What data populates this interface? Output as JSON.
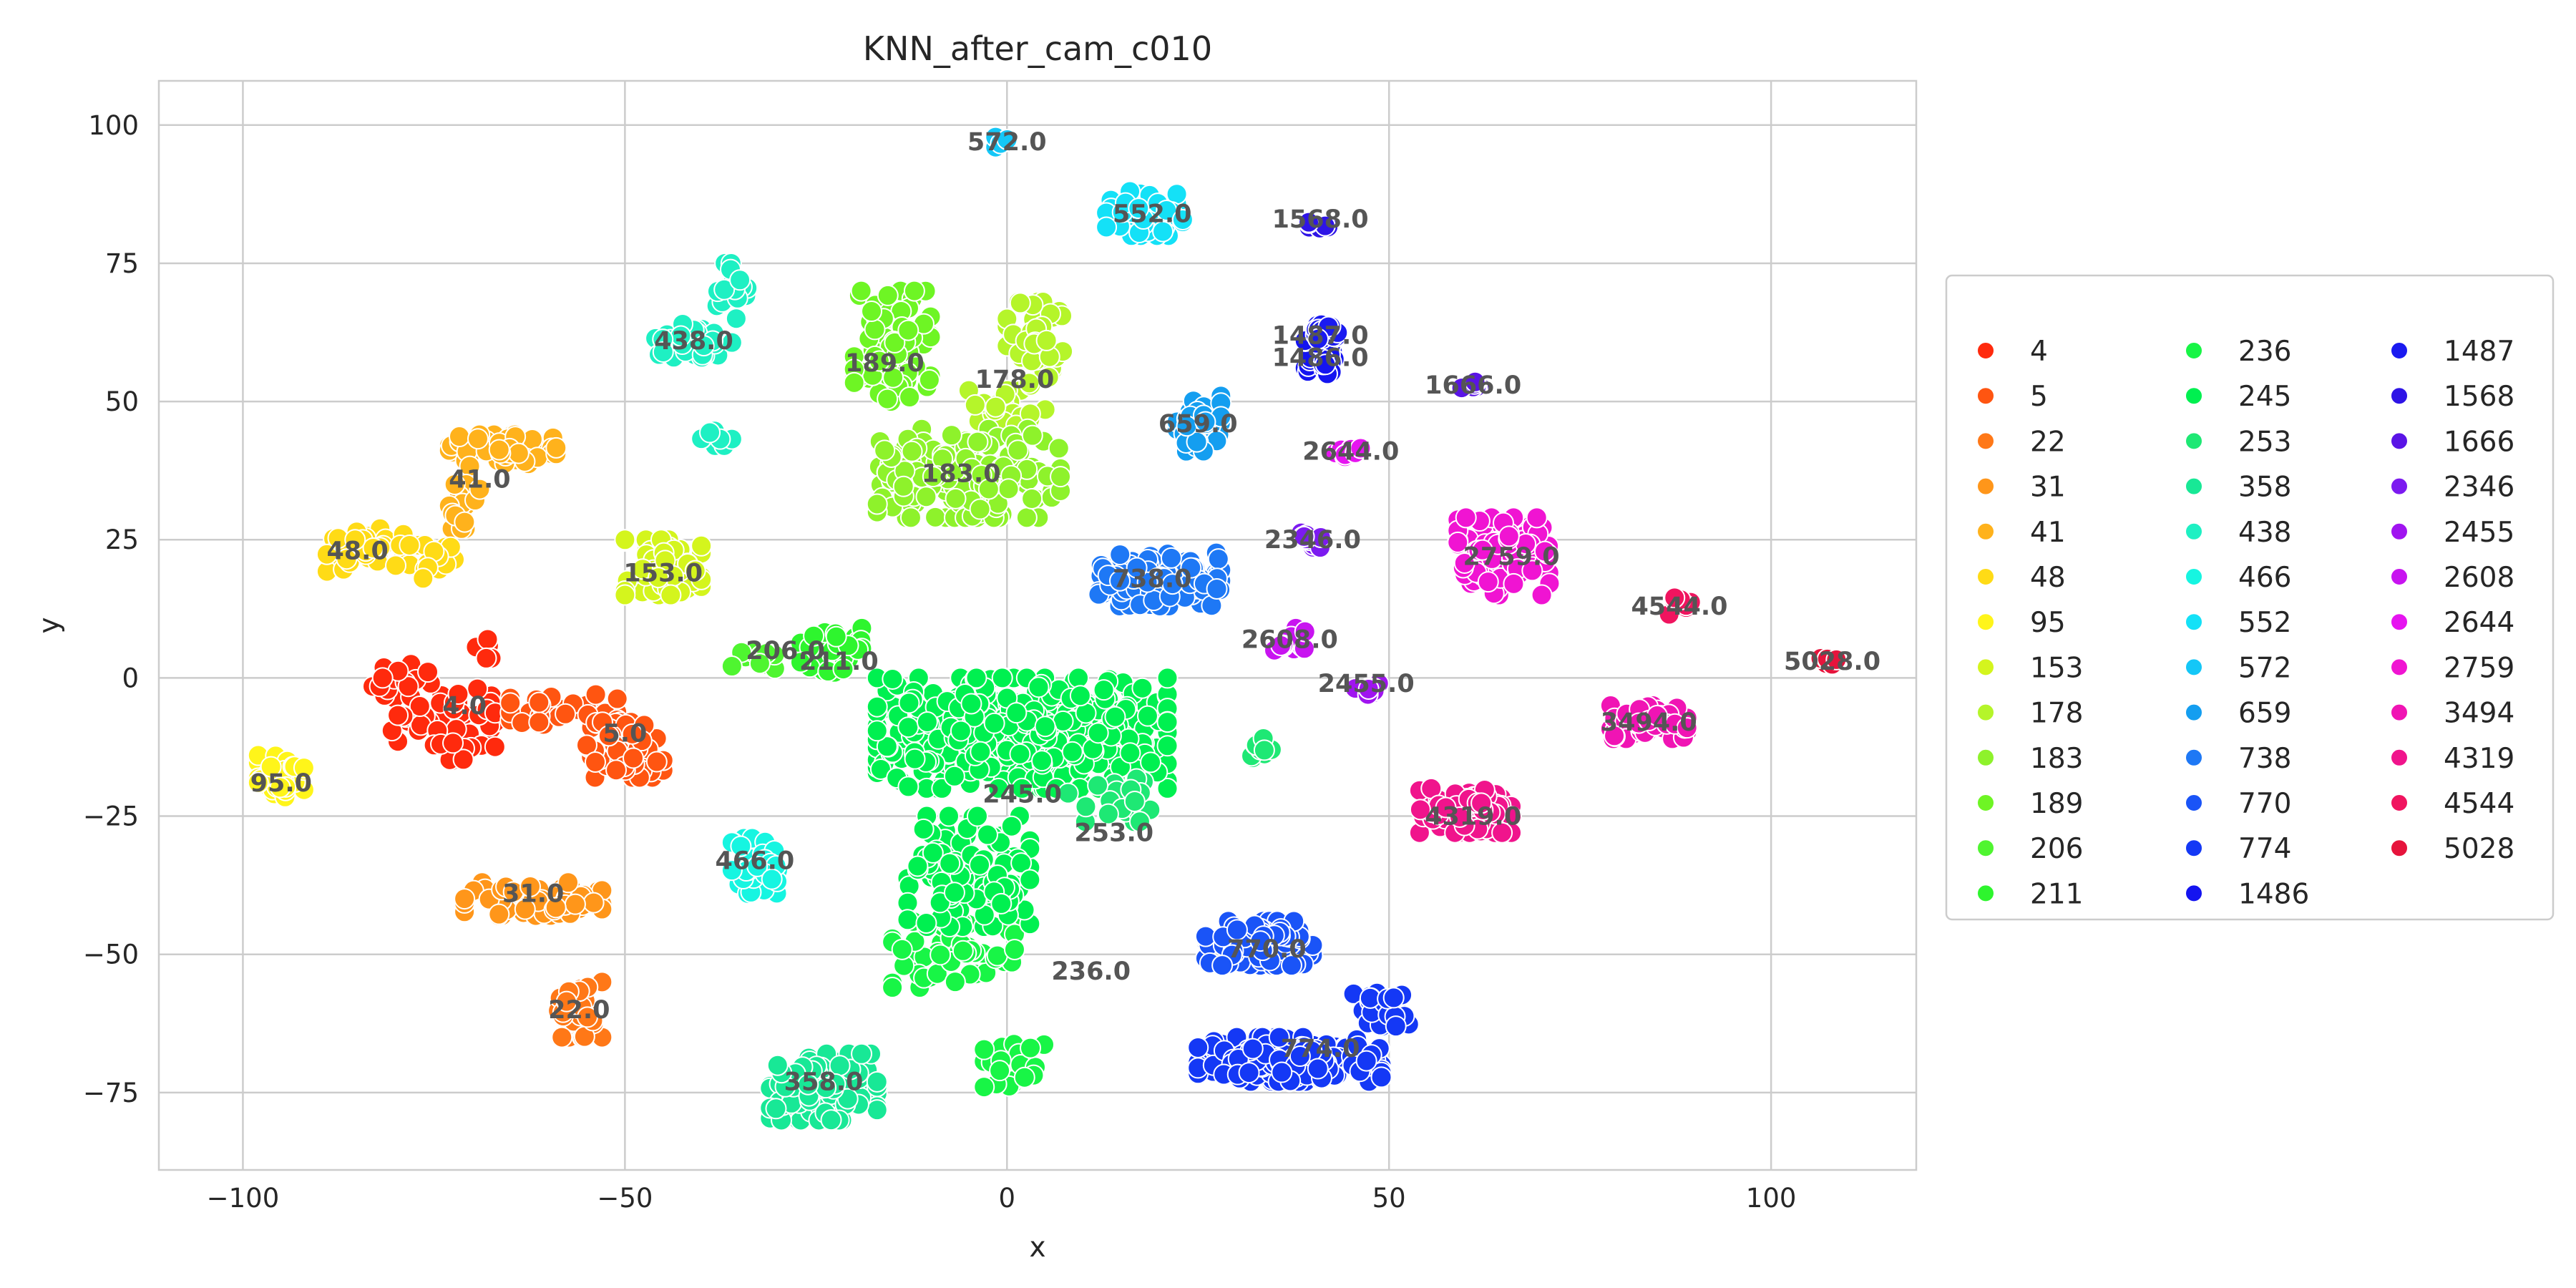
{
  "chart_data": {
    "type": "scatter",
    "title": "KNN_after_cam_c010",
    "xlabel": "x",
    "ylabel": "y",
    "xlim": [
      -111,
      119
    ],
    "ylim": [
      -89,
      108
    ],
    "xticks": [
      -100,
      -50,
      0,
      50,
      100
    ],
    "yticks": [
      -75,
      -50,
      -25,
      0,
      25,
      50,
      75,
      100
    ],
    "grid": true,
    "legend_position": "right",
    "marker_edge_color": "#ffffff",
    "series": [
      {
        "name": "4",
        "color": "#ff2a0d",
        "label": "4.0",
        "label_pos": [
          -71,
          -5
        ],
        "clusters": [
          [
            -75,
            -8,
            8,
            7,
            55
          ],
          [
            -79,
            0,
            4,
            4,
            15
          ],
          [
            -69,
            5,
            2,
            2,
            5
          ]
        ]
      },
      {
        "name": "5",
        "color": "#ff5511",
        "label": "5.0",
        "label_pos": [
          -50,
          -10
        ],
        "clusters": [
          [
            -58,
            -6,
            7,
            3,
            35
          ],
          [
            -50,
            -13,
            5,
            5,
            70
          ]
        ]
      },
      {
        "name": "22",
        "color": "#ff7817",
        "label": "22.0",
        "label_pos": [
          -56,
          -60
        ],
        "clusters": [
          [
            -56,
            -60,
            3,
            5,
            45
          ]
        ]
      },
      {
        "name": "31",
        "color": "#ff961a",
        "label": "31.0",
        "label_pos": [
          -62,
          -39
        ],
        "clusters": [
          [
            -62,
            -40,
            9,
            3,
            75
          ]
        ]
      },
      {
        "name": "41",
        "color": "#ffb21c",
        "label": "41.0",
        "label_pos": [
          -69,
          36
        ],
        "clusters": [
          [
            -66,
            41,
            7,
            3,
            55
          ],
          [
            -71,
            31,
            2,
            4,
            15
          ]
        ]
      },
      {
        "name": "48",
        "color": "#ffdb16",
        "label": "48.0",
        "label_pos": [
          -85,
          23
        ],
        "clusters": [
          [
            -84,
            23,
            5,
            4,
            40
          ],
          [
            -75,
            21,
            5,
            3,
            20
          ]
        ]
      },
      {
        "name": "95",
        "color": "#fff51a",
        "label": "95.0",
        "label_pos": [
          -95,
          -19
        ],
        "clusters": [
          [
            -95,
            -18,
            3,
            4,
            35
          ]
        ]
      },
      {
        "name": "153",
        "color": "#d4f51d",
        "label": "153.0",
        "label_pos": [
          -45,
          19
        ],
        "clusters": [
          [
            -45,
            20,
            5,
            5,
            70
          ]
        ]
      },
      {
        "name": "178",
        "color": "#b5f52a",
        "label": "178.0",
        "label_pos": [
          1,
          54
        ],
        "clusters": [
          [
            4,
            60,
            4,
            8,
            50
          ],
          [
            0,
            48,
            5,
            4,
            25
          ]
        ]
      },
      {
        "name": "183",
        "color": "#8ef22b",
        "label": "183.0",
        "label_pos": [
          -6,
          37
        ],
        "clusters": [
          [
            -5,
            37,
            12,
            8,
            200
          ]
        ]
      },
      {
        "name": "189",
        "color": "#6ef524",
        "label": "189.0",
        "label_pos": [
          -16,
          57
        ],
        "clusters": [
          [
            -15,
            60,
            5,
            10,
            95
          ]
        ]
      },
      {
        "name": "206",
        "color": "#4ff530",
        "label": "206.0",
        "label_pos": [
          -29,
          5
        ],
        "clusters": [
          [
            -33,
            3,
            3,
            2,
            10
          ]
        ]
      },
      {
        "name": "211",
        "color": "#2ef52e",
        "label": "211.0",
        "label_pos": [
          -22,
          3
        ],
        "clusters": [
          [
            -23,
            5,
            4,
            4,
            45
          ]
        ]
      },
      {
        "name": "236",
        "color": "#18f546",
        "label": "236.0",
        "label_pos": [
          11,
          -53
        ],
        "clusters": [
          [
            1,
            -70,
            4,
            4,
            25
          ],
          [
            -7,
            -50,
            8,
            6,
            60
          ]
        ]
      },
      {
        "name": "245",
        "color": "#00f050",
        "label": "245.0",
        "label_pos": [
          2,
          -21
        ],
        "clusters": [
          [
            2,
            -10,
            19,
            10,
            500
          ],
          [
            -5,
            -35,
            8,
            10,
            120
          ]
        ]
      },
      {
        "name": "253",
        "color": "#1ee874",
        "label": "253.0",
        "label_pos": [
          14,
          -28
        ],
        "clusters": [
          [
            14,
            -22,
            6,
            4,
            35
          ],
          [
            34,
            -13,
            2,
            3,
            10
          ]
        ]
      },
      {
        "name": "358",
        "color": "#18e896",
        "label": "358.0",
        "label_pos": [
          -24,
          -73
        ],
        "clusters": [
          [
            -24,
            -74,
            7,
            6,
            130
          ]
        ]
      },
      {
        "name": "438",
        "color": "#1ef0c3",
        "label": "438.0",
        "label_pos": [
          -41,
          61
        ],
        "clusters": [
          [
            -41,
            61,
            5,
            3,
            40
          ],
          [
            -36,
            70,
            2,
            5,
            20
          ],
          [
            -38,
            44,
            2,
            2,
            8
          ]
        ]
      },
      {
        "name": "466",
        "color": "#16f5e1",
        "label": "466.0",
        "label_pos": [
          -33,
          -33
        ],
        "clusters": [
          [
            -33,
            -34,
            3,
            5,
            45
          ]
        ]
      },
      {
        "name": "552",
        "color": "#14e1f7",
        "label": "552.0",
        "label_pos": [
          19,
          84
        ],
        "clusters": [
          [
            18,
            84,
            5,
            4,
            70
          ]
        ]
      },
      {
        "name": "572",
        "color": "#14c7f7",
        "label": "572.0",
        "label_pos": [
          0,
          97
        ],
        "clusters": [
          [
            0,
            97,
            1.5,
            1,
            6
          ]
        ]
      },
      {
        "name": "659",
        "color": "#149ef0",
        "label": "659.0",
        "label_pos": [
          25,
          46
        ],
        "clusters": [
          [
            25,
            46,
            3,
            5,
            45
          ]
        ]
      },
      {
        "name": "738",
        "color": "#1e78f5",
        "label": "738.0",
        "label_pos": [
          19,
          18
        ],
        "clusters": [
          [
            20,
            18,
            8,
            5,
            120
          ]
        ]
      },
      {
        "name": "770",
        "color": "#1a54f7",
        "label": "770.0",
        "label_pos": [
          34,
          -49
        ],
        "clusters": [
          [
            33,
            -48,
            7,
            4,
            100
          ]
        ]
      },
      {
        "name": "774",
        "color": "#1438f5",
        "label": "774.0",
        "label_pos": [
          41,
          -67
        ],
        "clusters": [
          [
            37,
            -69,
            12,
            4,
            180
          ],
          [
            49,
            -60,
            4,
            3,
            30
          ]
        ]
      },
      {
        "name": "1486",
        "color": "#1414f0",
        "label": "1486.0",
        "label_pos": [
          41,
          58
        ],
        "clusters": [
          [
            41,
            58,
            2,
            3,
            25
          ]
        ]
      },
      {
        "name": "1487",
        "color": "#1a1af0",
        "label": "1487.0",
        "label_pos": [
          41,
          62
        ],
        "clusters": [
          [
            42,
            63,
            2,
            2,
            15
          ]
        ]
      },
      {
        "name": "1568",
        "color": "#2e14e6",
        "label": "1568.0",
        "label_pos": [
          41,
          83
        ],
        "clusters": [
          [
            41,
            82,
            1.5,
            1,
            8
          ]
        ]
      },
      {
        "name": "1666",
        "color": "#5a14e6",
        "label": "1666.0",
        "label_pos": [
          61,
          53
        ],
        "clusters": [
          [
            61,
            53,
            1.5,
            1,
            8
          ]
        ]
      },
      {
        "name": "2346",
        "color": "#7c1af0",
        "label": "2346.0",
        "label_pos": [
          40,
          25
        ],
        "clusters": [
          [
            40,
            25,
            1.5,
            2,
            12
          ]
        ]
      },
      {
        "name": "2455",
        "color": "#a014f0",
        "label": "2455.0",
        "label_pos": [
          47,
          -1
        ],
        "clusters": [
          [
            47,
            -2,
            2,
            1,
            10
          ]
        ]
      },
      {
        "name": "2608",
        "color": "#c814f0",
        "label": "2608.0",
        "label_pos": [
          37,
          7
        ],
        "clusters": [
          [
            37,
            7,
            2,
            2,
            12
          ]
        ]
      },
      {
        "name": "2644",
        "color": "#e614f0",
        "label": "2644.0",
        "label_pos": [
          45,
          41
        ],
        "clusters": [
          [
            45,
            41,
            2,
            1,
            10
          ]
        ]
      },
      {
        "name": "2759",
        "color": "#f014d2",
        "label": "2759.0",
        "label_pos": [
          66,
          22
        ],
        "clusters": [
          [
            65,
            22,
            6,
            7,
            130
          ]
        ]
      },
      {
        "name": "3494",
        "color": "#f014b4",
        "label": "3494.0",
        "label_pos": [
          84,
          -8
        ],
        "clusters": [
          [
            84,
            -8,
            5,
            3,
            60
          ]
        ]
      },
      {
        "name": "4319",
        "color": "#f0148c",
        "label": "4319.0",
        "label_pos": [
          61,
          -25
        ],
        "clusters": [
          [
            60,
            -24,
            6,
            4,
            100
          ]
        ]
      },
      {
        "name": "4544",
        "color": "#f0145f",
        "label": "4544.0",
        "label_pos": [
          88,
          13
        ],
        "clusters": [
          [
            88,
            13,
            2,
            1.5,
            12
          ]
        ]
      },
      {
        "name": "5028",
        "color": "#e6143c",
        "label": "5028.0",
        "label_pos": [
          108,
          3
        ],
        "clusters": [
          [
            108,
            3,
            1.5,
            1,
            6
          ]
        ]
      }
    ]
  }
}
